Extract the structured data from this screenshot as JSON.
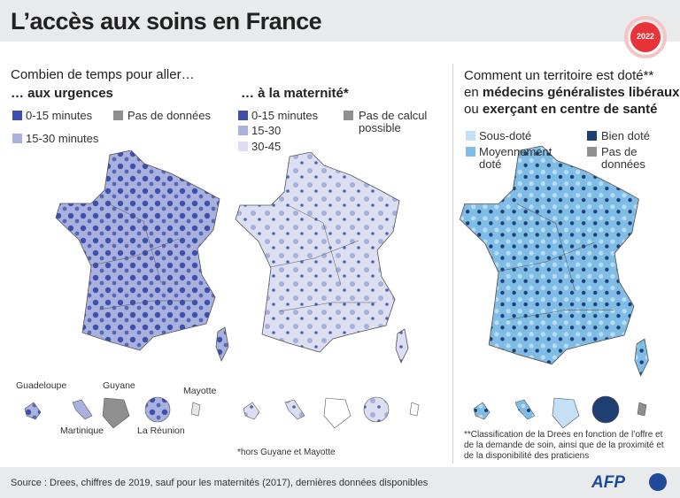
{
  "header": {
    "title": "L’accès aux soins en France",
    "badge": "2022"
  },
  "left": {
    "heading": "Combien de temps pour aller…",
    "urgences": {
      "title": "… aux urgences",
      "legend": [
        "0-15 minutes",
        "Pas de données",
        "15-30 minutes"
      ]
    },
    "maternite": {
      "title": "… à la maternité*",
      "legend": [
        "0-15 minutes",
        "Pas de calcul possible",
        "15-30",
        "30-45"
      ],
      "footnote": "*hors Guyane et Mayotte"
    },
    "overseas": [
      "Guadeloupe",
      "Guyane",
      "Mayotte",
      "Martinique",
      "La Réunion"
    ]
  },
  "right": {
    "heading": {
      "line1": "Comment un territoire est doté**",
      "line2_prefix": "en ",
      "line2_bold": "médecins généralistes libéraux",
      "line3_prefix": "ou ",
      "line3_bold": "exerçant en centre de santé"
    },
    "legend": [
      "Sous-doté",
      "Bien doté",
      "Moyennement doté",
      "Pas de données"
    ],
    "footnote": "**Classification de la Drees en fonction de l’offre et de la demande de soin, ainsi que de la proximité et de la disponibilité des praticiens"
  },
  "footer": {
    "source": "Source : Drees, chiffres de 2019, sauf pour les maternités (2017), dernières données disponibles",
    "logo": "AFP"
  }
}
